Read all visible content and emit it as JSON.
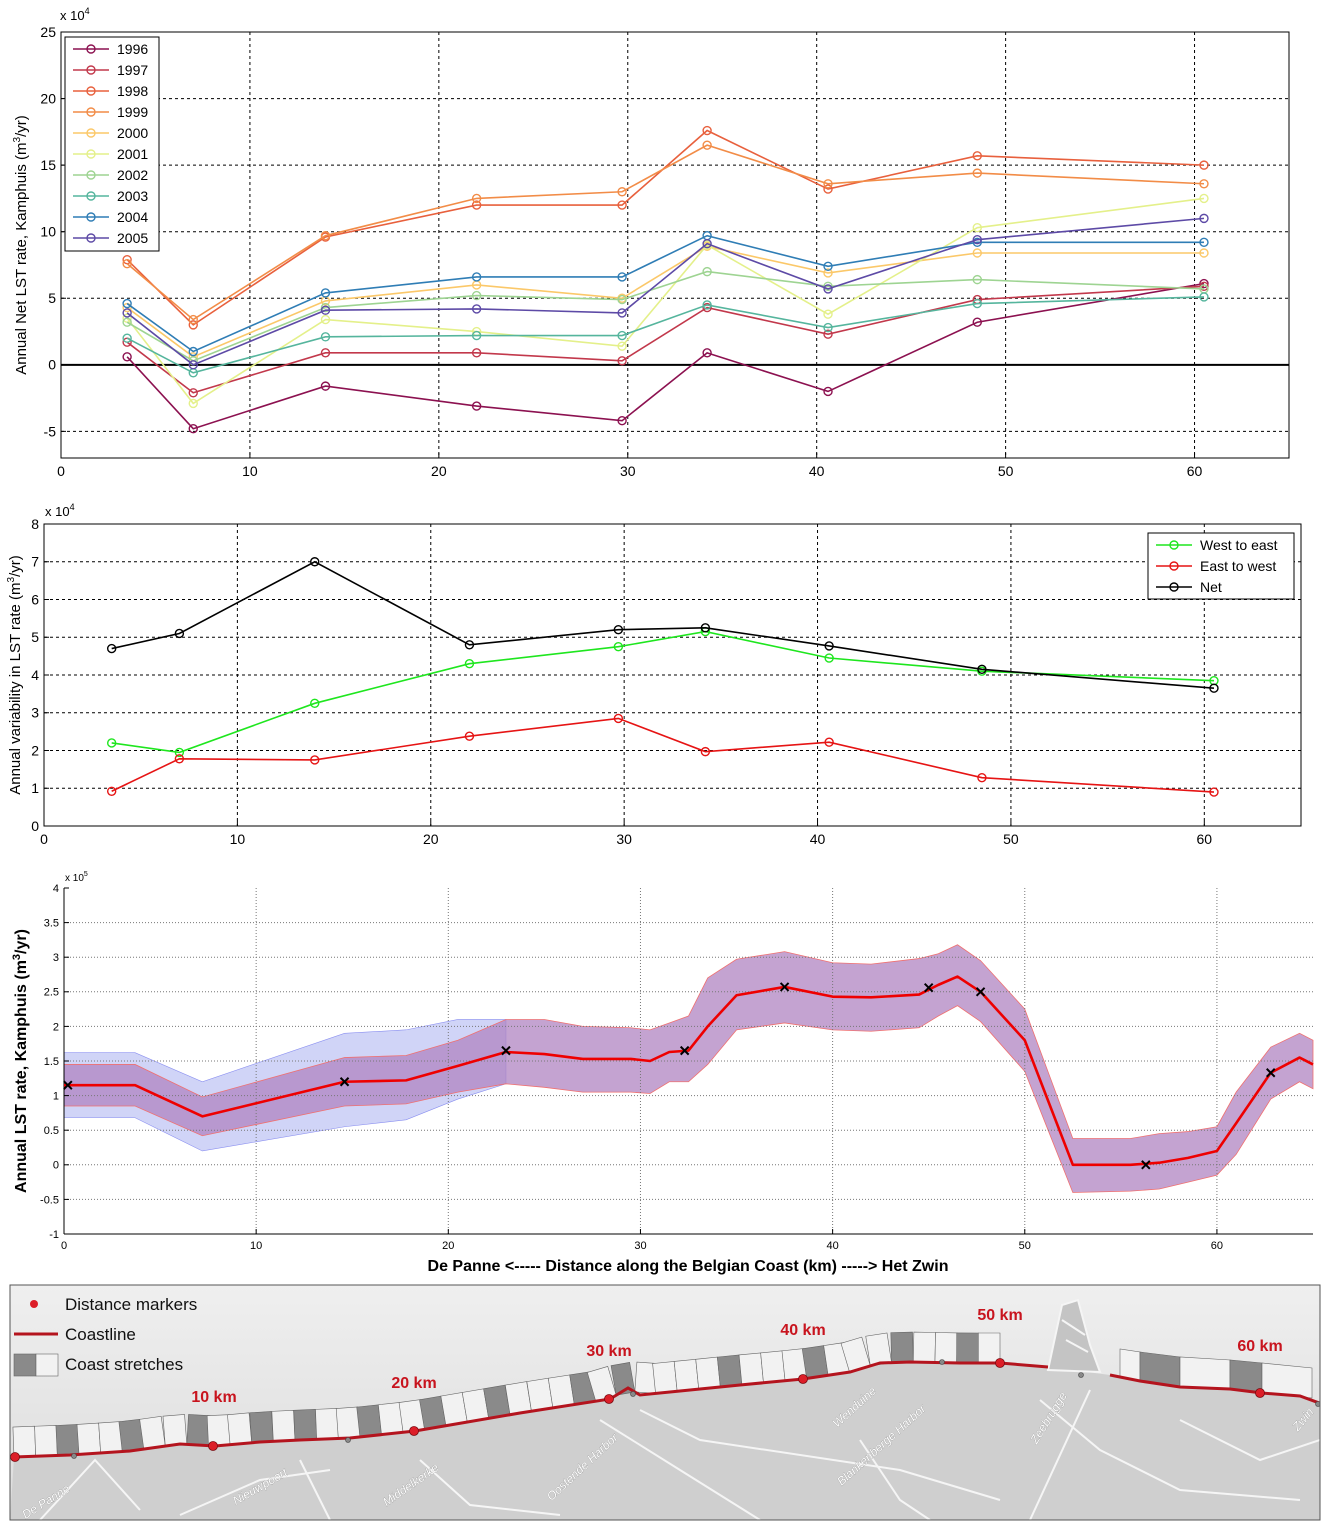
{
  "chart_data": [
    {
      "type": "line",
      "ylabel": "Annual Net LST rate, Kamphuis (m³/yr)",
      "multiplier": "x 10^4",
      "xlim": [
        0,
        65
      ],
      "ylim": [
        -7,
        25
      ],
      "xticks": [
        0,
        10,
        20,
        30,
        40,
        50,
        60
      ],
      "yticks": [
        -5,
        0,
        5,
        10,
        15,
        20,
        25
      ],
      "grid": true,
      "legend_position": "top-left",
      "x": [
        3.5,
        7,
        14,
        22,
        29.7,
        34.2,
        40.6,
        48.5,
        60.5
      ],
      "series": [
        {
          "name": "1996",
          "color": "#8c1150",
          "values": [
            0.6,
            -4.8,
            -1.6,
            -3.1,
            -4.2,
            0.9,
            -2.0,
            3.2,
            6.1
          ]
        },
        {
          "name": "1997",
          "color": "#c2384b",
          "values": [
            1.7,
            -2.1,
            0.9,
            0.9,
            0.3,
            4.3,
            2.3,
            4.9,
            5.9
          ]
        },
        {
          "name": "1998",
          "color": "#e8603d",
          "values": [
            7.9,
            3.0,
            9.6,
            12.0,
            12.0,
            17.6,
            13.2,
            15.7,
            15.0
          ]
        },
        {
          "name": "1999",
          "color": "#f28c47",
          "values": [
            7.6,
            3.4,
            9.7,
            12.5,
            13.0,
            16.5,
            13.6,
            14.4,
            13.6
          ]
        },
        {
          "name": "2000",
          "color": "#fbc869",
          "values": [
            4.3,
            0.6,
            4.8,
            6.0,
            5.0,
            8.9,
            6.9,
            8.4,
            8.4
          ]
        },
        {
          "name": "2001",
          "color": "#e4f08a",
          "values": [
            3.5,
            -2.9,
            3.4,
            2.5,
            1.4,
            9.0,
            3.8,
            10.3,
            12.5
          ]
        },
        {
          "name": "2002",
          "color": "#9ed492",
          "values": [
            3.2,
            0.3,
            4.3,
            5.2,
            4.9,
            7.0,
            5.9,
            6.4,
            5.7
          ]
        },
        {
          "name": "2003",
          "color": "#55b59d",
          "values": [
            2.0,
            -0.6,
            2.1,
            2.2,
            2.2,
            4.5,
            2.8,
            4.6,
            5.1
          ]
        },
        {
          "name": "2004",
          "color": "#2f7db5",
          "values": [
            4.6,
            1.0,
            5.4,
            6.6,
            6.6,
            9.7,
            7.4,
            9.2,
            9.2
          ]
        },
        {
          "name": "2005",
          "color": "#5d4aa6",
          "values": [
            3.9,
            0.0,
            4.1,
            4.2,
            3.9,
            9.1,
            5.7,
            9.4,
            11.0
          ]
        }
      ]
    },
    {
      "type": "line",
      "ylabel": "Annual variability in LST rate (m³/yr)",
      "multiplier": "x 10^4",
      "xlim": [
        0,
        65
      ],
      "ylim": [
        0,
        8
      ],
      "xticks": [
        0,
        10,
        20,
        30,
        40,
        50,
        60
      ],
      "yticks": [
        0,
        1,
        2,
        3,
        4,
        5,
        6,
        7,
        8
      ],
      "grid": true,
      "legend_position": "top-right",
      "x": [
        3.5,
        7,
        14,
        22,
        29.7,
        34.2,
        40.6,
        48.5,
        60.5
      ],
      "series": [
        {
          "name": "West to east",
          "color": "#1ee61e",
          "values": [
            2.2,
            1.95,
            3.25,
            4.3,
            4.75,
            5.15,
            4.45,
            4.1,
            3.85
          ]
        },
        {
          "name": "East to west",
          "color": "#e61414",
          "values": [
            0.92,
            1.78,
            1.75,
            2.38,
            2.85,
            1.97,
            2.22,
            1.28,
            0.9
          ]
        },
        {
          "name": "Net",
          "color": "#000000",
          "values": [
            4.7,
            5.1,
            7.0,
            4.8,
            5.2,
            5.25,
            4.77,
            4.15,
            3.65
          ]
        }
      ]
    },
    {
      "type": "area",
      "xlabel": "De Panne <----- Distance along the Belgian Coast (km) -----> Het Zwin",
      "ylabel": "Annual LST rate, Kamphuis (m³/yr)",
      "multiplier": "x 10^5",
      "xlim": [
        0,
        65
      ],
      "ylim": [
        -1,
        4
      ],
      "xticks": [
        0,
        10,
        20,
        30,
        40,
        50,
        60
      ],
      "yticks": [
        -1,
        -0.5,
        0,
        0.5,
        1,
        1.5,
        2,
        2.5,
        3,
        3.5,
        4
      ],
      "grid": true,
      "series": [
        {
          "name": "",
          "color": "#ee0000",
          "x": [
            0,
            3.7,
            7.2,
            14.6,
            17.8,
            20.5,
            23,
            25,
            27,
            29.5,
            30.5,
            31.5,
            32.5,
            33.5,
            35,
            37.5,
            40,
            42,
            44.5,
            45.5,
            46.5,
            47.7,
            50,
            52.5,
            55.5,
            57,
            58.5,
            60,
            61,
            62.8,
            64.3,
            65
          ],
          "values": [
            1.15,
            1.15,
            0.7,
            1.2,
            1.22,
            1.43,
            1.63,
            1.6,
            1.53,
            1.53,
            1.5,
            1.63,
            1.65,
            2.0,
            2.45,
            2.57,
            2.43,
            2.42,
            2.46,
            2.6,
            2.72,
            2.5,
            1.8,
            0.0,
            0.0,
            0.03,
            0.1,
            0.2,
            0.6,
            1.33,
            1.55,
            1.45
          ]
        }
      ],
      "band_inner": {
        "color": "#b084c2",
        "x": [
          0,
          3.7,
          7.2,
          14.6,
          17.8,
          20.5,
          23,
          25,
          27,
          29.5,
          30.5,
          31.5,
          32.5,
          33.5,
          35,
          37.5,
          40,
          42,
          44.5,
          45.5,
          46.5,
          47.7,
          50,
          52.5,
          55.5,
          57,
          58.5,
          60,
          61,
          62.8,
          64.3,
          65
        ],
        "upper": [
          1.45,
          1.45,
          0.98,
          1.55,
          1.58,
          1.8,
          2.1,
          2.1,
          2.0,
          1.98,
          1.95,
          2.05,
          2.15,
          2.7,
          2.97,
          3.08,
          2.92,
          2.9,
          2.98,
          3.05,
          3.18,
          2.95,
          2.25,
          0.38,
          0.38,
          0.45,
          0.48,
          0.55,
          1.05,
          1.7,
          1.9,
          1.8
        ],
        "lower": [
          0.85,
          0.85,
          0.42,
          0.85,
          0.88,
          1.05,
          1.17,
          1.12,
          1.05,
          1.05,
          1.03,
          1.2,
          1.2,
          1.45,
          1.95,
          2.05,
          1.95,
          1.93,
          1.98,
          2.15,
          2.3,
          2.07,
          1.35,
          -0.4,
          -0.38,
          -0.35,
          -0.25,
          -0.15,
          0.15,
          0.95,
          1.2,
          1.1
        ]
      },
      "band_outer": {
        "color": "#aab0f0",
        "x": [
          0,
          3.7,
          7.2,
          14.6,
          17.8,
          20.5,
          23
        ],
        "upper": [
          1.62,
          1.62,
          1.2,
          1.9,
          1.95,
          2.1,
          2.1
        ],
        "lower": [
          0.68,
          0.68,
          0.2,
          0.55,
          0.65,
          0.95,
          1.17
        ]
      },
      "markers": {
        "x": [
          0.2,
          14.6,
          23,
          32.3,
          37.5,
          45,
          47.7,
          56.3,
          62.8
        ],
        "y": [
          1.15,
          1.2,
          1.65,
          1.65,
          2.57,
          2.56,
          2.5,
          0.0,
          1.33
        ]
      }
    }
  ],
  "map": {
    "legend": {
      "distance_markers": "Distance markers",
      "coastline": "Coastline",
      "coast_stretches": "Coast stretches"
    },
    "km_labels": [
      "10 km",
      "20 km",
      "30 km",
      "40 km",
      "50 km",
      "60 km"
    ],
    "place_names": [
      "De Panne",
      "Nieuwpoort",
      "Middelkerke",
      "Oostende Harbor",
      "Wenduine",
      "Blankenberge Harbor",
      "Zeebrugge",
      "Zwin"
    ],
    "colors": {
      "coastline": "#b4141e",
      "marker": "#dc1e28",
      "stretch_dark": "#8a8a8a",
      "stretch_light": "#f2f2f2",
      "sea": "#e4e4e4",
      "land": "#d2d2d2"
    }
  }
}
